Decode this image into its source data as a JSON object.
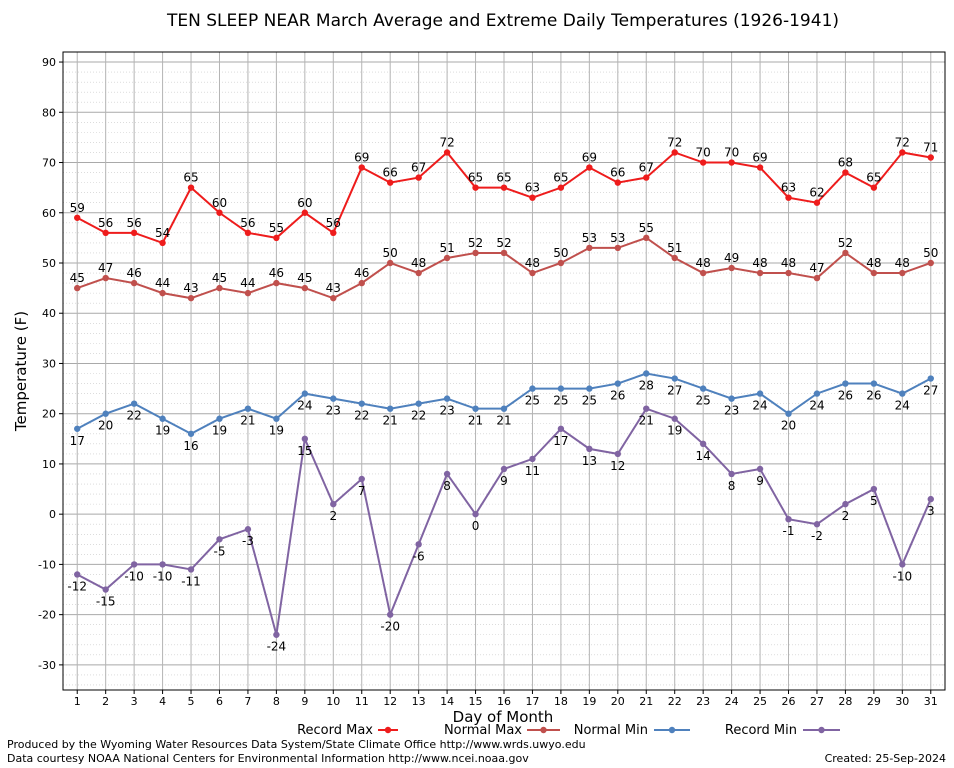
{
  "chart_data": {
    "type": "line",
    "title": "TEN SLEEP NEAR March Average and Extreme Daily Temperatures (1926-1941)",
    "xlabel": "Day of Month",
    "ylabel": "Temperature (F)",
    "ylim": [
      -35,
      92
    ],
    "xlim": [
      0.5,
      31.5
    ],
    "yticks": [
      -30,
      -20,
      -10,
      0,
      10,
      20,
      30,
      40,
      50,
      60,
      70,
      80,
      90
    ],
    "categories": [
      "1",
      "2",
      "3",
      "4",
      "5",
      "6",
      "7",
      "8",
      "9",
      "10",
      "11",
      "12",
      "13",
      "14",
      "15",
      "16",
      "17",
      "18",
      "19",
      "20",
      "21",
      "22",
      "23",
      "24",
      "25",
      "26",
      "27",
      "28",
      "29",
      "30",
      "31"
    ],
    "grid": true,
    "legend_position": "bottom",
    "series": [
      {
        "name": "Record Max",
        "color": "#ee1c1c",
        "label_side": "above",
        "values": [
          59,
          56,
          56,
          54,
          65,
          60,
          56,
          55,
          60,
          56,
          69,
          66,
          67,
          72,
          65,
          65,
          63,
          65,
          69,
          66,
          67,
          72,
          70,
          70,
          69,
          63,
          62,
          68,
          65,
          72,
          71
        ]
      },
      {
        "name": "Normal Max",
        "color": "#c0504d",
        "label_side": "above",
        "values": [
          45,
          47,
          46,
          44,
          43,
          45,
          44,
          46,
          45,
          43,
          46,
          50,
          48,
          51,
          52,
          52,
          48,
          50,
          53,
          53,
          55,
          51,
          48,
          49,
          48,
          48,
          47,
          52,
          48,
          48,
          50
        ]
      },
      {
        "name": "Normal Min",
        "color": "#4f81bd",
        "label_side": "below",
        "values": [
          17,
          20,
          22,
          19,
          16,
          19,
          21,
          19,
          24,
          23,
          22,
          21,
          22,
          23,
          21,
          21,
          25,
          25,
          25,
          26,
          28,
          27,
          25,
          23,
          24,
          20,
          24,
          26,
          26,
          24,
          27
        ]
      },
      {
        "name": "Record Min",
        "color": "#8064a2",
        "label_side": "below",
        "values": [
          -12,
          -15,
          -10,
          -10,
          -11,
          -5,
          -3,
          -24,
          15,
          2,
          7,
          -20,
          -6,
          8,
          0,
          9,
          11,
          17,
          13,
          12,
          21,
          19,
          14,
          8,
          9,
          -1,
          -2,
          2,
          5,
          -10,
          3
        ]
      }
    ]
  },
  "footer": {
    "produced_by": "Produced by the Wyoming Water Resources Data System/State Climate Office http://www.wrds.uwyo.edu",
    "courtesy": "Data courtesy NOAA National Centers for Environmental Information http://www.ncei.noaa.gov",
    "created": "Created:  25-Sep-2024"
  }
}
